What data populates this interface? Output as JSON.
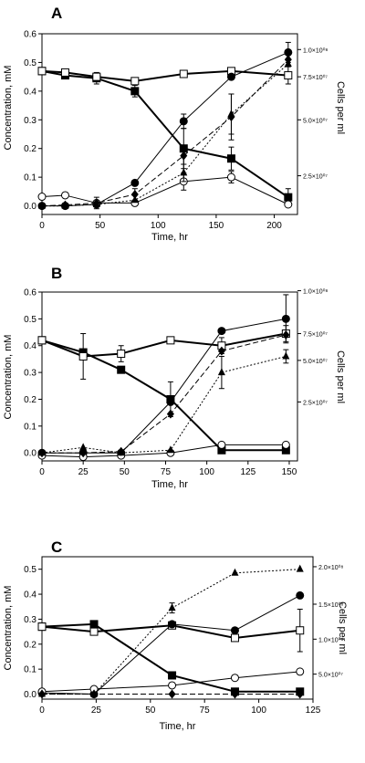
{
  "chart_data": [
    {
      "type": "line",
      "panel_label": "A",
      "xlabel": "Time, hr",
      "ylabel": "Concentration, mM",
      "y2label": "Cells per ml",
      "xlim": [
        0,
        220
      ],
      "ylim": [
        -0.03,
        0.6
      ],
      "xticks": [
        "0",
        "50",
        "100",
        "150",
        "200"
      ],
      "yticks": [
        "0.0",
        "0.1",
        "0.2",
        "0.3",
        "0.4",
        "0.5",
        "0.6"
      ],
      "y2ticks": [
        {
          "label": "2.5×10⁰⁷",
          "y": 0.105
        },
        {
          "label": "5.0×10⁰⁷",
          "y": 0.3
        },
        {
          "label": "7.5×10⁰⁷",
          "y": 0.45
        },
        {
          "label": "1.0×10⁰⁸",
          "y": 0.545
        }
      ],
      "series": [
        {
          "marker": "square-filled",
          "dash": "solid",
          "width": 2,
          "x": [
            0,
            20,
            47,
            80,
            122,
            163,
            212
          ],
          "y": [
            0.47,
            0.455,
            0.445,
            0.4,
            0.2,
            0.165,
            0.03
          ],
          "err": [
            0,
            0,
            0.02,
            0.02,
            0.07,
            0.04,
            0.03
          ]
        },
        {
          "marker": "square-open",
          "dash": "solid",
          "width": 2,
          "x": [
            0,
            20,
            47,
            80,
            122,
            163,
            212
          ],
          "y": [
            0.47,
            0.465,
            0.45,
            0.435,
            0.46,
            0.47,
            0.455
          ],
          "err": [
            0.01,
            0.01,
            0.01,
            0.01,
            0.01,
            0.01,
            0.03
          ]
        },
        {
          "marker": "circle-filled",
          "dash": "solid",
          "width": 1,
          "x": [
            0,
            20,
            47,
            80,
            122,
            163,
            212
          ],
          "y": [
            0.0,
            0.0,
            0.005,
            0.08,
            0.295,
            0.45,
            0.535
          ],
          "err": [
            0,
            0,
            0,
            0,
            0.025,
            0,
            0.035
          ]
        },
        {
          "marker": "circle-open",
          "dash": "solid",
          "width": 1,
          "x": [
            0,
            20,
            47,
            80,
            122,
            163,
            212
          ],
          "y": [
            0.032,
            0.037,
            0.01,
            0.01,
            0.085,
            0.1,
            0.005
          ],
          "err": [
            0,
            0,
            0.02,
            0,
            0.03,
            0.02,
            0
          ]
        },
        {
          "marker": "diamond-filled",
          "dash": "dashed",
          "width": 1,
          "x": [
            0,
            20,
            47,
            80,
            122,
            163,
            212
          ],
          "y": [
            0.0,
            0.003,
            0.01,
            0.04,
            0.175,
            0.31,
            0.51
          ],
          "err": [
            0,
            0,
            0,
            0.02,
            0.03,
            0.08,
            0
          ]
        },
        {
          "marker": "triangle-filled",
          "dash": "dotted",
          "width": 1,
          "x": [
            0,
            20,
            47,
            80,
            122,
            163,
            212
          ],
          "y": [
            0.0,
            0.0,
            0.005,
            0.02,
            0.115,
            0.32,
            0.495
          ],
          "err": [
            0,
            0,
            0,
            0,
            0.03,
            0.07,
            0
          ]
        }
      ]
    },
    {
      "type": "line",
      "panel_label": "B",
      "xlabel": "Time, hr",
      "ylabel": "Concentration, mM",
      "y2label": "Cells per ml",
      "xlim": [
        0,
        155
      ],
      "ylim": [
        -0.03,
        0.6
      ],
      "xticks": [
        "0",
        "25",
        "50",
        "75",
        "100",
        "125",
        "150"
      ],
      "yticks": [
        "0.0",
        "0.1",
        "0.2",
        "0.3",
        "0.4",
        "0.5",
        "0.6"
      ],
      "y2ticks": [
        {
          "label": "2.5×10⁰⁷",
          "y": 0.19
        },
        {
          "label": "5.0×10⁰⁷",
          "y": 0.345
        },
        {
          "label": "7.5×10⁰⁷",
          "y": 0.445
        },
        {
          "label": "1.0×10⁰⁸",
          "y": 0.605
        }
      ],
      "series": [
        {
          "marker": "square-filled",
          "dash": "solid",
          "width": 2,
          "x": [
            0,
            25,
            48,
            78,
            109,
            148
          ],
          "y": [
            0.42,
            0.375,
            0.31,
            0.2,
            0.01,
            0.01
          ],
          "err": [
            0,
            0,
            0,
            0.065,
            0,
            0
          ]
        },
        {
          "marker": "square-open",
          "dash": "solid",
          "width": 2,
          "x": [
            0,
            25,
            48,
            78,
            109,
            148
          ],
          "y": [
            0.42,
            0.36,
            0.37,
            0.42,
            0.4,
            0.445
          ],
          "err": [
            0,
            0.085,
            0.03,
            0,
            0.03,
            0.03
          ]
        },
        {
          "marker": "circle-filled",
          "dash": "solid",
          "width": 1,
          "x": [
            0,
            25,
            48,
            78,
            109,
            148
          ],
          "y": [
            0.0,
            0.0,
            0.0,
            0.19,
            0.455,
            0.5
          ],
          "err": [
            0,
            0,
            0,
            0,
            0,
            0.09
          ]
        },
        {
          "marker": "circle-open",
          "dash": "solid",
          "width": 1,
          "x": [
            0,
            25,
            48,
            78,
            109,
            148
          ],
          "y": [
            -0.01,
            -0.015,
            -0.01,
            0.0,
            0.03,
            0.03
          ],
          "err": [
            0,
            0,
            0,
            0,
            0,
            0
          ]
        },
        {
          "marker": "diamond-filled",
          "dash": "dashed",
          "width": 1,
          "x": [
            0,
            25,
            48,
            78,
            109,
            148
          ],
          "y": [
            0.0,
            0.0,
            0.005,
            0.145,
            0.38,
            0.44
          ],
          "err": [
            0,
            0,
            0,
            0,
            0,
            0
          ]
        },
        {
          "marker": "triangle-filled",
          "dash": "dotted",
          "width": 1,
          "x": [
            0,
            25,
            48,
            78,
            109,
            148
          ],
          "y": [
            0.0,
            0.02,
            0.0,
            0.01,
            0.3,
            0.36
          ],
          "err": [
            0,
            0,
            0,
            0,
            0.06,
            0.025
          ]
        }
      ]
    },
    {
      "type": "line",
      "panel_label": "C",
      "xlabel": "Time, hr",
      "ylabel": "Concentration, mM",
      "y2label": "Cells per ml",
      "xlim": [
        0,
        125
      ],
      "ylim": [
        -0.02,
        0.55
      ],
      "xticks": [
        "0",
        "25",
        "50",
        "75",
        "100",
        "125"
      ],
      "yticks": [
        "0.0",
        "0.1",
        "0.2",
        "0.3",
        "0.4",
        "0.5"
      ],
      "y2ticks": [
        {
          "label": "5.0×10⁰⁷",
          "y": 0.08
        },
        {
          "label": "1.0×10⁰⁸",
          "y": 0.22
        },
        {
          "label": "1.5×10⁰⁸",
          "y": 0.36
        },
        {
          "label": "2.0×10⁰⁸",
          "y": 0.51
        }
      ],
      "series": [
        {
          "marker": "square-filled",
          "dash": "solid",
          "width": 2,
          "x": [
            0,
            24,
            60,
            89,
            119
          ],
          "y": [
            0.27,
            0.28,
            0.075,
            0.01,
            0.01
          ],
          "err": [
            0,
            0,
            0,
            0,
            0
          ]
        },
        {
          "marker": "square-open",
          "dash": "solid",
          "width": 2,
          "x": [
            0,
            24,
            60,
            89,
            119
          ],
          "y": [
            0.27,
            0.25,
            0.275,
            0.225,
            0.255
          ],
          "err": [
            0,
            0,
            0,
            0,
            0.085
          ]
        },
        {
          "marker": "circle-filled",
          "dash": "solid",
          "width": 1,
          "x": [
            0,
            24,
            60,
            89,
            119
          ],
          "y": [
            0.005,
            0.0,
            0.28,
            0.255,
            0.395
          ],
          "err": [
            0,
            0,
            0,
            0,
            0
          ]
        },
        {
          "marker": "circle-open",
          "dash": "solid",
          "width": 1,
          "x": [
            0,
            24,
            60,
            89,
            119
          ],
          "y": [
            0.01,
            0.02,
            0.035,
            0.065,
            0.09
          ],
          "err": [
            0,
            0,
            0,
            0,
            0
          ]
        },
        {
          "marker": "diamond-filled",
          "dash": "dashed",
          "width": 1,
          "x": [
            0,
            24,
            60,
            89,
            119
          ],
          "y": [
            0.0,
            0.0,
            0.0,
            0.0,
            0.0
          ],
          "err": [
            0,
            0,
            0,
            0,
            0
          ]
        },
        {
          "marker": "triangle-filled",
          "dash": "dotted",
          "width": 1,
          "x": [
            0,
            24,
            60,
            89,
            119
          ],
          "y": [
            0.0,
            0.0,
            0.345,
            0.485,
            0.5
          ],
          "err": [
            0,
            0,
            0.02,
            0,
            0
          ]
        }
      ]
    }
  ]
}
